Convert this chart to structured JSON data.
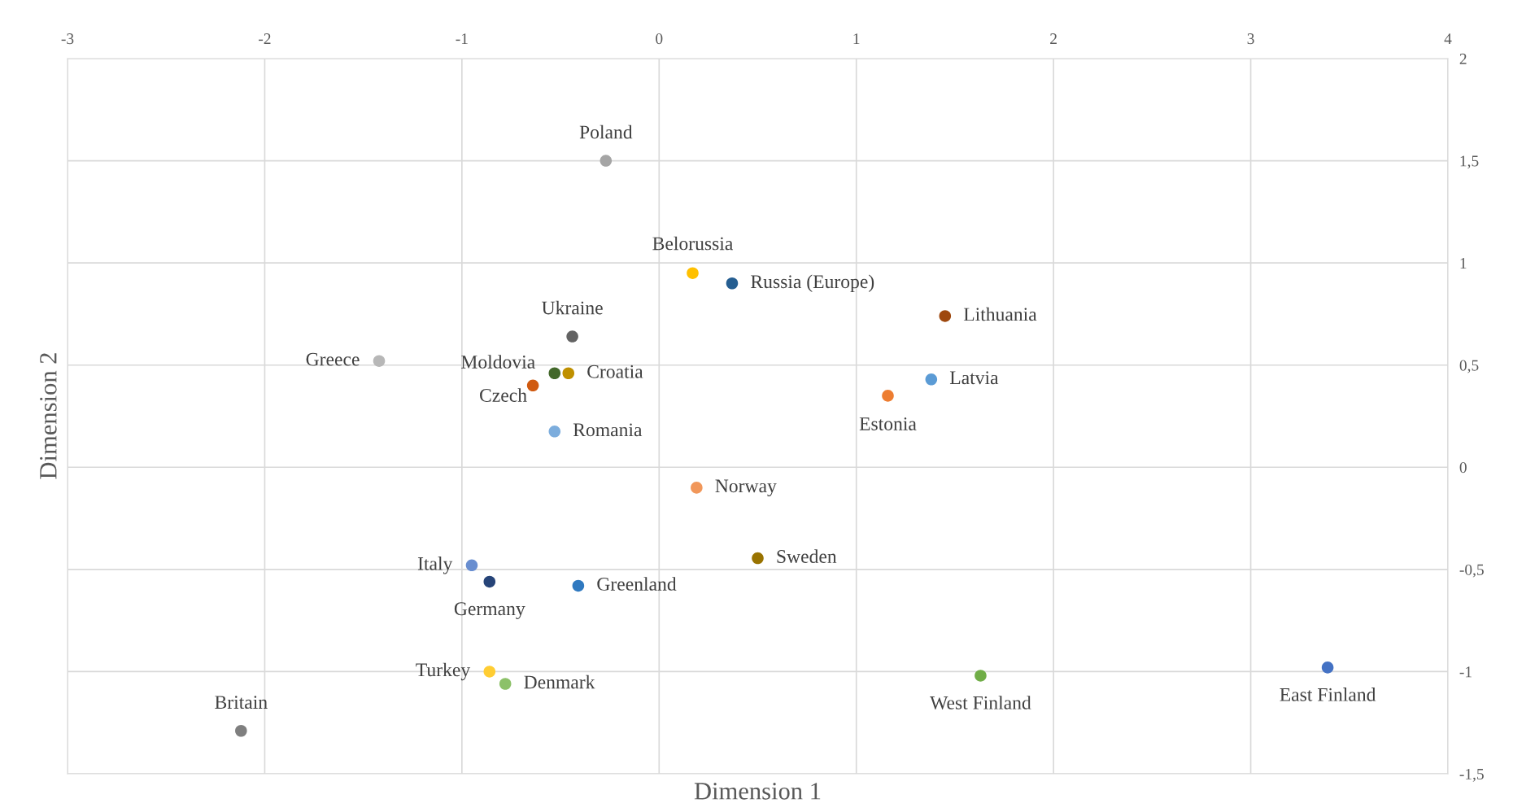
{
  "chart_data": {
    "type": "scatter",
    "xlabel": "Dimension 1",
    "ylabel": "Dimension 2",
    "x": [
      -0.27,
      0.17,
      0.37,
      1.45,
      -0.44,
      -1.42,
      -0.53,
      -0.46,
      -0.64,
      1.38,
      1.16,
      -0.53,
      0.19,
      0.5,
      -0.95,
      -0.86,
      -0.41,
      -0.86,
      -0.78,
      -2.12,
      1.63,
      3.39
    ],
    "values": [
      1.5,
      0.95,
      0.9,
      0.74,
      0.64,
      0.52,
      0.46,
      0.46,
      0.4,
      0.43,
      0.35,
      0.175,
      -0.1,
      -0.445,
      -0.48,
      -0.56,
      -0.58,
      -1.0,
      -1.06,
      -1.29,
      -1.02,
      -0.98
    ],
    "colors": [
      "#a5a5a5",
      "#ffc000",
      "#255e91",
      "#9e480e",
      "#636363",
      "#b7b7b7",
      "#43682b",
      "#bf9000",
      "#d05a10",
      "#5b9bd5",
      "#ed7d31",
      "#7caddd",
      "#f1975a",
      "#997300",
      "#698ed0",
      "#264478",
      "#2f79c0",
      "#ffcd33",
      "#8cc168",
      "#7f7f7f",
      "#70ad47",
      "#4472c4"
    ],
    "annotations": [
      {
        "text": "Poland",
        "x": -0.27,
        "y": 1.5
      },
      {
        "text": "Belorussia",
        "x": 0.17,
        "y": 0.95
      },
      {
        "text": "Russia (Europe)",
        "x": 0.37,
        "y": 0.9
      },
      {
        "text": "Lithuania",
        "x": 1.45,
        "y": 0.74
      },
      {
        "text": "Ukraine",
        "x": -0.44,
        "y": 0.64
      },
      {
        "text": "Greece",
        "x": -1.42,
        "y": 0.52
      },
      {
        "text": "Moldovia",
        "x": -0.53,
        "y": 0.46
      },
      {
        "text": "Croatia",
        "x": -0.46,
        "y": 0.46
      },
      {
        "text": "Czech",
        "x": -0.64,
        "y": 0.4
      },
      {
        "text": "Latvia",
        "x": 1.38,
        "y": 0.43
      },
      {
        "text": "Estonia",
        "x": 1.16,
        "y": 0.35
      },
      {
        "text": "Romania",
        "x": -0.53,
        "y": 0.175
      },
      {
        "text": "Norway",
        "x": 0.19,
        "y": -0.1
      },
      {
        "text": "Sweden",
        "x": 0.5,
        "y": -0.445
      },
      {
        "text": "Italy",
        "x": -0.95,
        "y": -0.48
      },
      {
        "text": "Germany",
        "x": -0.86,
        "y": -0.56
      },
      {
        "text": "Greenland",
        "x": -0.41,
        "y": -0.58
      },
      {
        "text": "Turkey",
        "x": -0.86,
        "y": -1.0
      },
      {
        "text": "Denmark",
        "x": -0.78,
        "y": -1.06
      },
      {
        "text": "Britain",
        "x": -2.12,
        "y": -1.29
      },
      {
        "text": "West Finland",
        "x": 1.63,
        "y": -1.02
      },
      {
        "text": "East Finland",
        "x": 3.39,
        "y": -0.98
      }
    ],
    "xlim": [
      -3,
      4
    ],
    "xticks": [
      -3,
      -2,
      -1,
      0,
      1,
      2,
      3,
      4
    ],
    "ylim": [
      -1.5,
      2
    ],
    "yticks": [
      {
        "value": -1.5,
        "label": "-1,5"
      },
      -1,
      {
        "value": -0.5,
        "label": "-0,5"
      },
      0,
      {
        "value": 0.5,
        "label": "0,5"
      },
      1,
      {
        "value": 1.5,
        "label": "1,5"
      },
      2
    ],
    "grid": true,
    "marker": "circle"
  }
}
